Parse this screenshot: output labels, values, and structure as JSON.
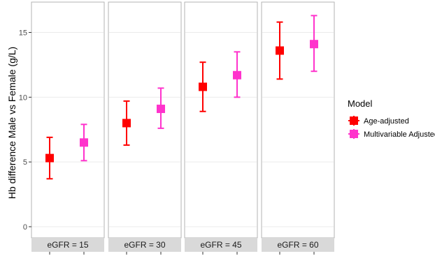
{
  "chart_data": {
    "type": "scatter",
    "subtype": "point-range faceted",
    "ylabel": "Hb difference Male vs Female (g/L)",
    "ylim": [
      0,
      17
    ],
    "yticks": [
      0,
      5,
      10,
      15
    ],
    "grid": true,
    "facets": [
      "eGFR = 15",
      "eGFR = 30",
      "eGFR = 45",
      "eGFR = 60"
    ],
    "legend": {
      "title": "Model",
      "placement": "right",
      "items": [
        {
          "label": "Age-adjusted",
          "color": "#ff0000"
        },
        {
          "label": "Multivariable Adjusted",
          "color": "#ff33cc"
        }
      ]
    },
    "series": [
      {
        "name": "Age-adjusted",
        "color": "#ff0000",
        "values": [
          5.3,
          8.0,
          10.8,
          13.6
        ],
        "lower": [
          3.7,
          6.3,
          8.9,
          11.4
        ],
        "upper": [
          6.9,
          9.7,
          12.7,
          15.8
        ]
      },
      {
        "name": "Multivariable Adjusted",
        "color": "#ff33cc",
        "values": [
          6.5,
          9.1,
          11.7,
          14.1
        ],
        "lower": [
          5.1,
          7.6,
          10.0,
          12.0
        ],
        "upper": [
          7.9,
          10.7,
          13.5,
          16.3
        ]
      }
    ]
  }
}
